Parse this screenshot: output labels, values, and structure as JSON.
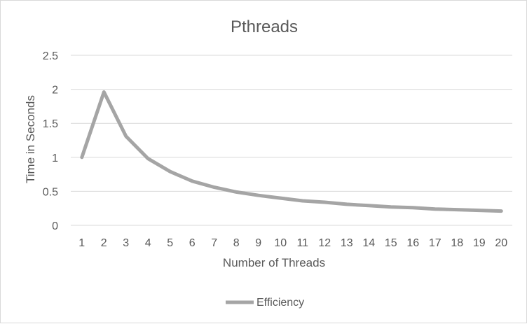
{
  "chart_data": {
    "type": "line",
    "title": "Pthreads",
    "xlabel": "Number of Threads",
    "ylabel": "Time in Seconds",
    "categories": [
      "1",
      "2",
      "3",
      "4",
      "5",
      "6",
      "7",
      "8",
      "9",
      "10",
      "11",
      "12",
      "13",
      "14",
      "15",
      "16",
      "17",
      "18",
      "19",
      "20"
    ],
    "ylim": [
      0,
      2.5
    ],
    "yticks": [
      "0",
      "0.5",
      "1",
      "1.5",
      "2",
      "2.5"
    ],
    "grid": true,
    "legend_position": "bottom",
    "series": [
      {
        "name": "Efficiency",
        "color": "#a5a5a5",
        "values": [
          1.0,
          1.96,
          1.31,
          0.98,
          0.79,
          0.65,
          0.56,
          0.49,
          0.44,
          0.4,
          0.36,
          0.34,
          0.31,
          0.29,
          0.27,
          0.26,
          0.24,
          0.23,
          0.22,
          0.21
        ]
      }
    ]
  }
}
